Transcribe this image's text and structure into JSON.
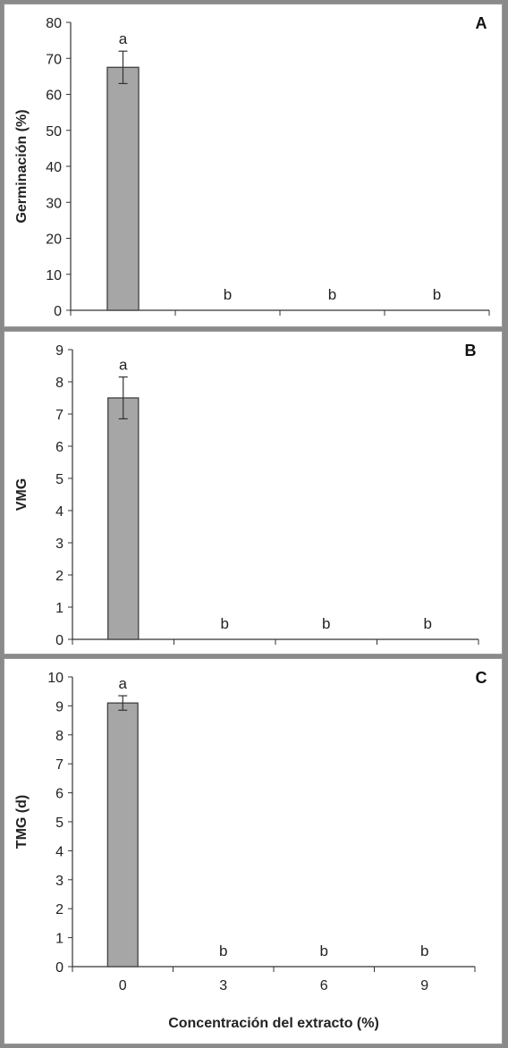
{
  "colors": {
    "bar_fill": "#a6a6a6",
    "bar_stroke": "#404040",
    "axis": "#333333"
  },
  "chart_data": [
    {
      "type": "bar",
      "panel": "A",
      "categories": [
        "0",
        "3",
        "6",
        "9"
      ],
      "values": [
        67.5,
        0,
        0,
        0
      ],
      "errors": [
        4.5,
        0,
        0,
        0
      ],
      "significance": [
        "a",
        "b",
        "b",
        "b"
      ],
      "ylabel": "Germinación (%)",
      "xlabel": "",
      "ylim": [
        0,
        80
      ],
      "yticks": [
        0,
        10,
        20,
        30,
        40,
        50,
        60,
        70,
        80
      ],
      "show_x_tick_labels": false
    },
    {
      "type": "bar",
      "panel": "B",
      "categories": [
        "0",
        "3",
        "6",
        "9"
      ],
      "values": [
        7.5,
        0,
        0,
        0
      ],
      "errors": [
        0.65,
        0,
        0,
        0
      ],
      "significance": [
        "a",
        "b",
        "b",
        "b"
      ],
      "ylabel": "VMG",
      "xlabel": "",
      "ylim": [
        0,
        9
      ],
      "yticks": [
        0,
        1,
        2,
        3,
        4,
        5,
        6,
        7,
        8,
        9
      ],
      "show_x_tick_labels": false
    },
    {
      "type": "bar",
      "panel": "C",
      "categories": [
        "0",
        "3",
        "6",
        "9"
      ],
      "values": [
        9.1,
        0,
        0,
        0
      ],
      "errors": [
        0.25,
        0,
        0,
        0
      ],
      "significance": [
        "a",
        "b",
        "b",
        "b"
      ],
      "ylabel": "TMG (d)",
      "xlabel": "Concentración del extracto (%)",
      "ylim": [
        0,
        10
      ],
      "yticks": [
        0,
        1,
        2,
        3,
        4,
        5,
        6,
        7,
        8,
        9,
        10
      ],
      "show_x_tick_labels": true
    }
  ]
}
